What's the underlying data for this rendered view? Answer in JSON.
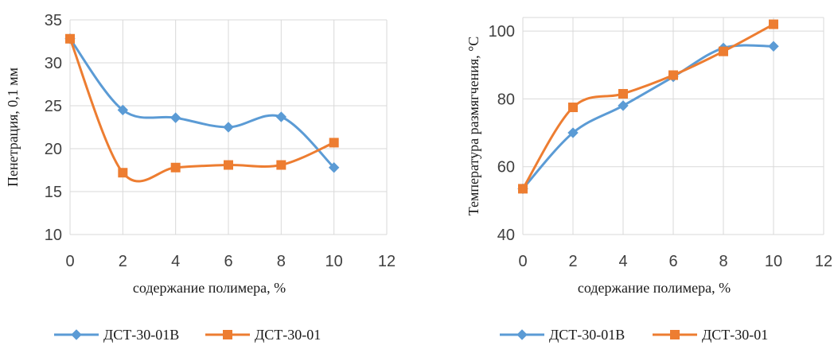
{
  "chart_data": [
    {
      "type": "line",
      "smooth": true,
      "x": [
        0,
        2,
        4,
        6,
        8,
        10
      ],
      "xlim": [
        0,
        12
      ],
      "xticks": [
        "0",
        "2",
        "4",
        "6",
        "8",
        "10",
        "12"
      ],
      "ylim": [
        10,
        35
      ],
      "yticks": [
        "10",
        "15",
        "20",
        "25",
        "30",
        "35"
      ],
      "xlabel": "содержание полимера, %",
      "ylabel": "Пенетрация, 0,1 мм",
      "grid": "both",
      "legend": "bottom",
      "series": [
        {
          "name": "ДСТ-30-01В",
          "color": "#5B9BD5",
          "marker": "diamond",
          "values": [
            32.8,
            24.5,
            23.6,
            22.5,
            23.7,
            17.8
          ]
        },
        {
          "name": "ДСТ-30-01",
          "color": "#ED7D31",
          "marker": "square",
          "values": [
            32.8,
            17.2,
            17.8,
            18.1,
            18.1,
            20.7
          ]
        }
      ]
    },
    {
      "type": "line",
      "smooth": true,
      "x": [
        0,
        2,
        4,
        6,
        8,
        10
      ],
      "xlim": [
        0,
        12
      ],
      "xticks": [
        "0",
        "2",
        "4",
        "6",
        "8",
        "10",
        "12"
      ],
      "ylim": [
        40,
        104
      ],
      "yticks": [
        "40",
        "60",
        "80",
        "100"
      ],
      "xlabel": "содержание полимера, %",
      "ylabel": "Температура размягчения, °С",
      "grid": "both",
      "legend": "bottom",
      "series": [
        {
          "name": "ДСТ-30-01В",
          "color": "#5B9BD5",
          "marker": "diamond",
          "values": [
            53.5,
            70,
            78,
            86.5,
            95,
            95.5
          ]
        },
        {
          "name": "ДСТ-30-01",
          "color": "#ED7D31",
          "marker": "square",
          "values": [
            53.5,
            77.5,
            81.5,
            87,
            94,
            102
          ]
        }
      ]
    }
  ]
}
